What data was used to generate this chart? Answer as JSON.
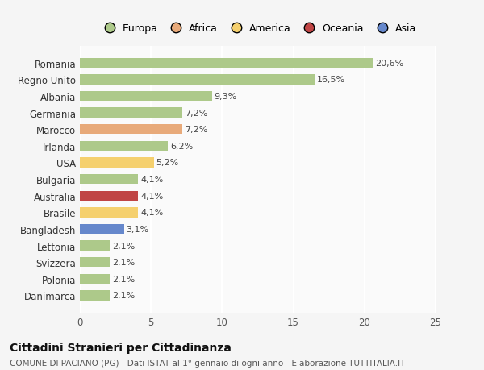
{
  "categories": [
    "Romania",
    "Regno Unito",
    "Albania",
    "Germania",
    "Marocco",
    "Irlanda",
    "USA",
    "Bulgaria",
    "Australia",
    "Brasile",
    "Bangladesh",
    "Lettonia",
    "Svizzera",
    "Polonia",
    "Danimarca"
  ],
  "values": [
    20.6,
    16.5,
    9.3,
    7.2,
    7.2,
    6.2,
    5.2,
    4.1,
    4.1,
    4.1,
    3.1,
    2.1,
    2.1,
    2.1,
    2.1
  ],
  "labels": [
    "20,6%",
    "16,5%",
    "9,3%",
    "7,2%",
    "7,2%",
    "6,2%",
    "5,2%",
    "4,1%",
    "4,1%",
    "4,1%",
    "3,1%",
    "2,1%",
    "2,1%",
    "2,1%",
    "2,1%"
  ],
  "colors": [
    "#adc98a",
    "#adc98a",
    "#adc98a",
    "#adc98a",
    "#e8aa7a",
    "#adc98a",
    "#f5d06e",
    "#adc98a",
    "#c04545",
    "#f5d06e",
    "#6688cc",
    "#adc98a",
    "#adc98a",
    "#adc98a",
    "#adc98a"
  ],
  "continent_colors": {
    "Europa": "#adc98a",
    "Africa": "#e8aa7a",
    "America": "#f5d06e",
    "Oceania": "#c04545",
    "Asia": "#6688cc"
  },
  "xlim": [
    0,
    25
  ],
  "xticks": [
    0,
    5,
    10,
    15,
    20,
    25
  ],
  "title": "Cittadini Stranieri per Cittadinanza",
  "subtitle": "COMUNE DI PACIANO (PG) - Dati ISTAT al 1° gennaio di ogni anno - Elaborazione TUTTITALIA.IT",
  "bg_color": "#f5f5f5",
  "plot_bg_color": "#fafafa",
  "grid_color": "#ffffff",
  "bar_height": 0.6,
  "label_fontsize": 8.0,
  "tick_fontsize": 8.5
}
